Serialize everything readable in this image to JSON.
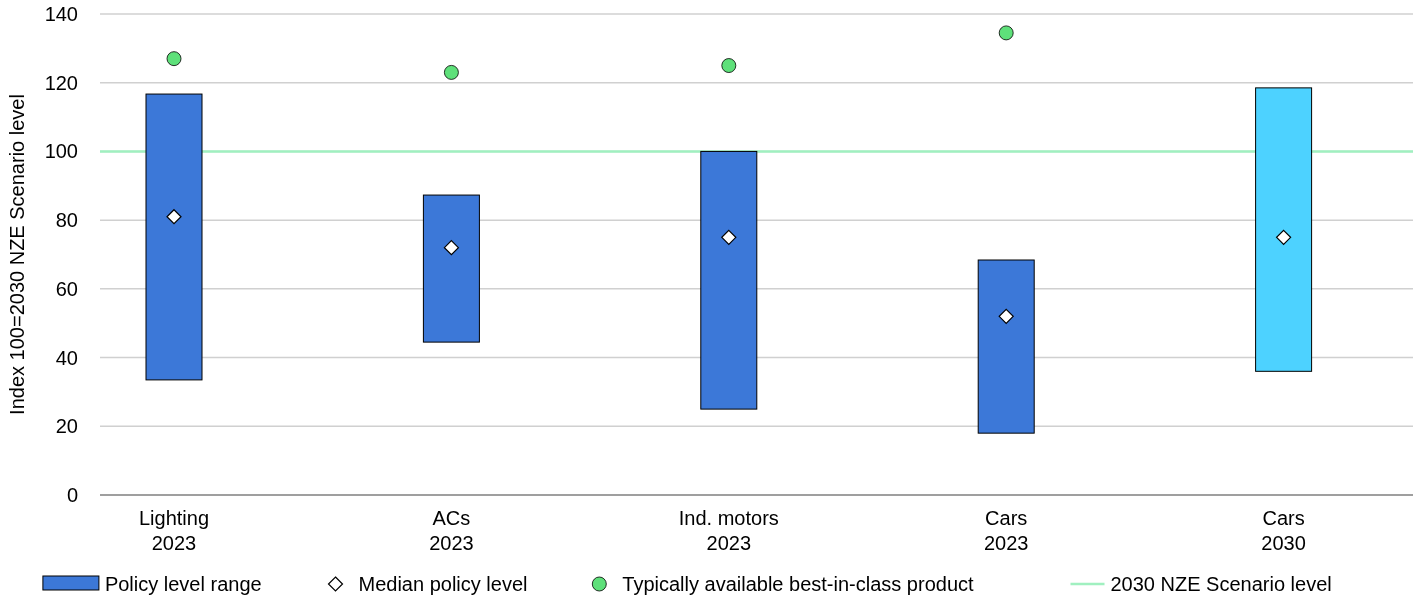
{
  "chart_data": {
    "type": "bar",
    "categories": [
      "Lighting\n2023",
      "ACs\n2023",
      "Ind. motors\n2023",
      "Cars\n2023",
      "Cars\n2030"
    ],
    "ylabel": "Index 100=2030 NZE Scenario level",
    "ylim": [
      0,
      140
    ],
    "yticks": [
      0,
      20,
      40,
      60,
      80,
      100,
      120,
      140
    ],
    "grid": "y",
    "legend": "bottom",
    "series": [
      {
        "type": "bar",
        "name": "Policy level range",
        "color": "#3c78d8",
        "colors": [
          "#3c78d8",
          "#3c78d8",
          "#3c78d8",
          "#3c78d8",
          "#4dd2ff"
        ],
        "base": [
          33.5,
          44.5,
          25,
          18,
          36
        ],
        "values": [
          83.2,
          42.8,
          75,
          50.4,
          82.5
        ]
      },
      {
        "type": "scatter",
        "name": "Median policy level",
        "color": "#ffffff",
        "marker": "diamond",
        "x": [
          "Lighting\n2023",
          "ACs\n2023",
          "Ind. motors\n2023",
          "Cars\n2023",
          "Cars\n2030"
        ],
        "values": [
          81,
          72,
          75,
          52,
          75
        ]
      },
      {
        "type": "scatter",
        "name": "Typically available best-in-class product",
        "color": "#5ee07a",
        "marker": "circle",
        "x": [
          "Lighting\n2023",
          "ACs\n2023",
          "Ind. motors\n2023",
          "Cars\n2023",
          "Cars\n2030"
        ],
        "values": [
          127,
          123,
          125,
          134.5,
          null
        ]
      }
    ],
    "ref_lines": [
      {
        "axis": "y",
        "value": 100,
        "label": "2030 NZE Scenario level",
        "color": "#a0f0c0"
      }
    ]
  }
}
